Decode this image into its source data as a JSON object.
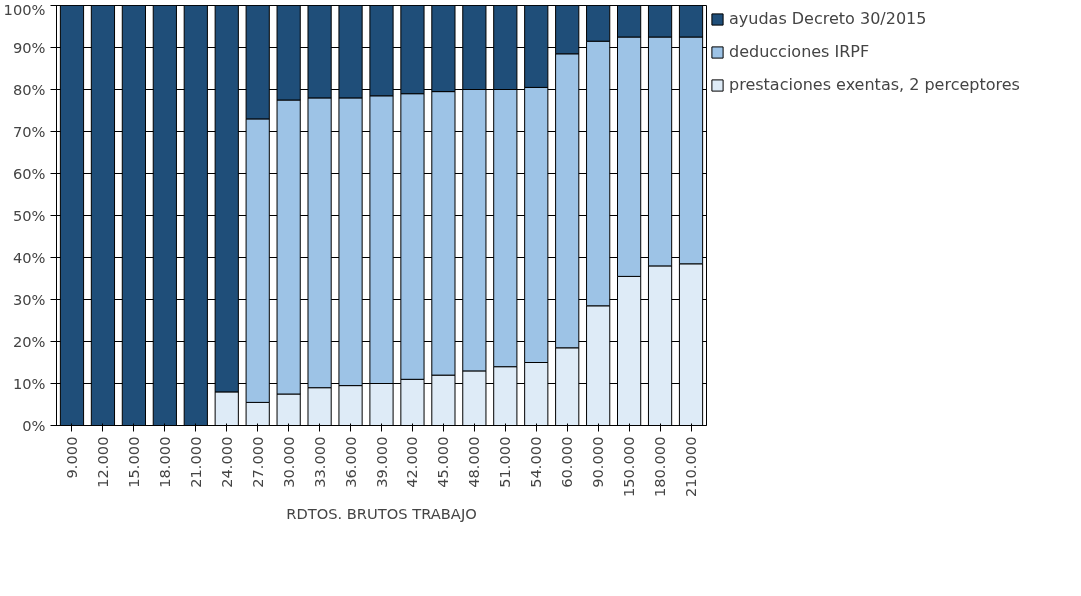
{
  "chart_data": {
    "type": "bar",
    "stacked": true,
    "xlabel": "RDTOS. BRUTOS TRABAJO",
    "categories": [
      "9.000",
      "12.000",
      "15.000",
      "18.000",
      "21.000",
      "24.000",
      "27.000",
      "30.000",
      "33.000",
      "36.000",
      "39.000",
      "42.000",
      "45.000",
      "48.000",
      "51.000",
      "54.000",
      "60.000",
      "90.000",
      "150.000",
      "180.000",
      "210.000"
    ],
    "series": [
      {
        "name": "prestaciones exentas, 2 perceptores",
        "color": "#deebf7",
        "values": [
          0,
          0,
          0,
          0,
          0,
          8,
          5.5,
          7.5,
          9,
          9.5,
          10,
          11,
          12,
          13,
          14,
          15,
          18.5,
          28.5,
          35.5,
          38,
          38.5
        ]
      },
      {
        "name": "deducciones IRPF",
        "color": "#9dc3e6",
        "values": [
          0,
          0,
          0,
          0,
          0,
          0,
          67.5,
          70,
          69,
          68.5,
          68.5,
          68,
          67.5,
          67,
          66,
          65.5,
          70,
          63,
          57,
          54.5,
          54
        ]
      },
      {
        "name": "ayudas Decreto 30/2015",
        "color": "#1f4e79",
        "values": [
          100,
          100,
          100,
          100,
          100,
          92,
          27,
          22.5,
          22,
          22,
          21.5,
          21,
          20.5,
          20,
          20,
          19.5,
          11.5,
          8.5,
          7.5,
          7.5,
          7.5
        ]
      }
    ],
    "ylim": [
      0,
      100
    ],
    "yticks": [
      {
        "value": 0,
        "label": "0%"
      },
      {
        "value": 10,
        "label": "10%"
      },
      {
        "value": 20,
        "label": "20%"
      },
      {
        "value": 30,
        "label": "30%"
      },
      {
        "value": 40,
        "label": "40%"
      },
      {
        "value": 50,
        "label": "50%"
      },
      {
        "value": 60,
        "label": "60%"
      },
      {
        "value": 70,
        "label": "70%"
      },
      {
        "value": 80,
        "label": "80%"
      },
      {
        "value": 90,
        "label": "90%"
      },
      {
        "value": 100,
        "label": "100%"
      }
    ],
    "grid": "y",
    "legend": "right"
  }
}
